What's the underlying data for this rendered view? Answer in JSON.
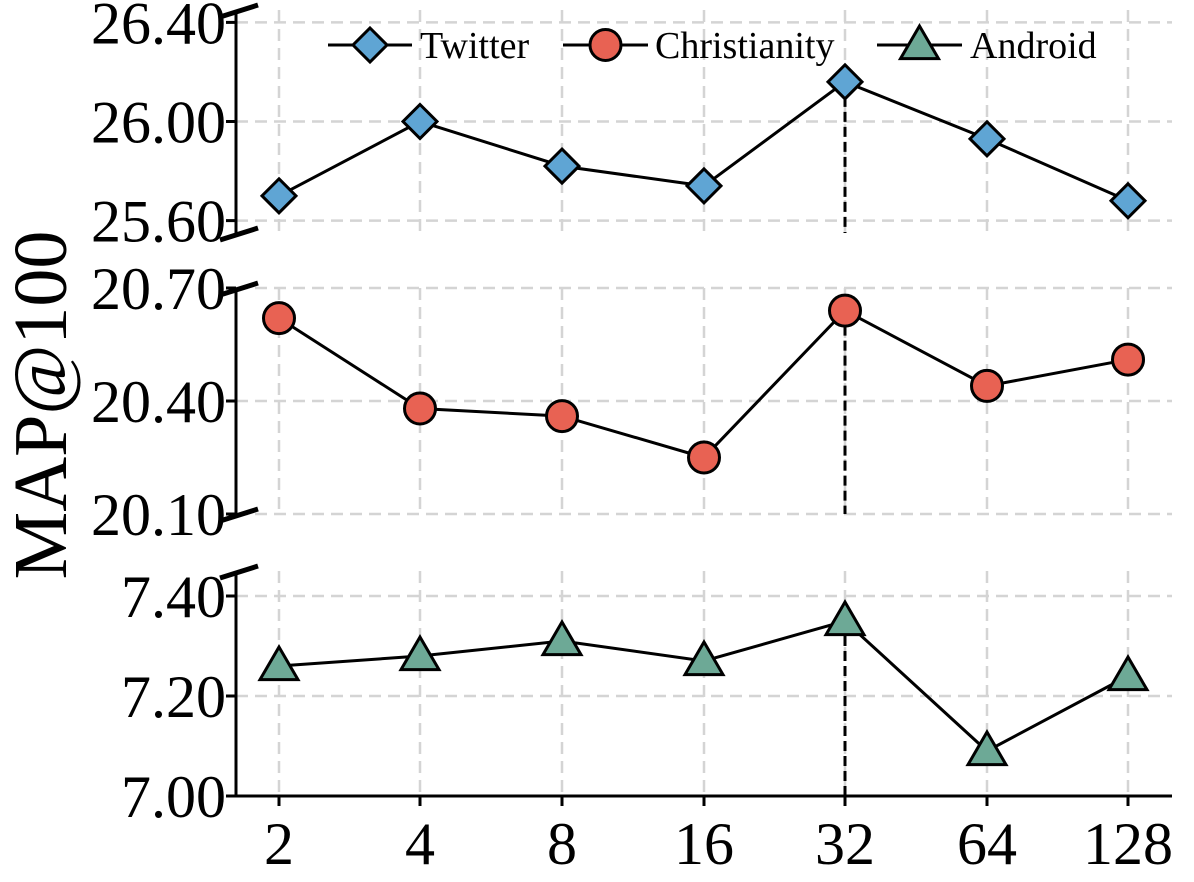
{
  "chart_data": {
    "type": "line",
    "ylabel": "MAP@100",
    "categories": [
      "2",
      "4",
      "8",
      "16",
      "32",
      "64",
      "128"
    ],
    "highlight_category": "32",
    "grid": true,
    "legend": {
      "placement": "top-right",
      "entries": [
        "Twitter",
        "Christianity",
        "Android"
      ]
    },
    "panels": [
      {
        "series": "Twitter",
        "ylim": [
          25.55,
          26.45
        ],
        "yticks": [
          25.6,
          26.0,
          26.4
        ],
        "ytick_labels": [
          "25.60",
          "26.00",
          "26.40"
        ]
      },
      {
        "series": "Christianity",
        "ylim": [
          20.1,
          20.7
        ],
        "yticks": [
          20.1,
          20.4,
          20.7
        ],
        "ytick_labels": [
          "20.10",
          "20.40",
          "20.70"
        ]
      },
      {
        "series": "Android",
        "ylim": [
          7.0,
          7.45
        ],
        "yticks": [
          7.0,
          7.2,
          7.4
        ],
        "ytick_labels": [
          "7.00",
          "7.20",
          "7.40"
        ]
      }
    ],
    "series": [
      {
        "name": "Twitter",
        "marker": "diamond-icon",
        "color": "#5fa5d4",
        "values": [
          25.7,
          26.0,
          25.82,
          25.74,
          26.16,
          25.93,
          25.68
        ]
      },
      {
        "name": "Christianity",
        "marker": "circle-icon",
        "color": "#e86253",
        "values": [
          20.62,
          20.38,
          20.36,
          20.25,
          20.64,
          20.44,
          20.51
        ]
      },
      {
        "name": "Android",
        "marker": "triangle-icon",
        "color": "#6da996",
        "values": [
          7.26,
          7.28,
          7.31,
          7.27,
          7.35,
          7.09,
          7.24
        ]
      }
    ]
  }
}
